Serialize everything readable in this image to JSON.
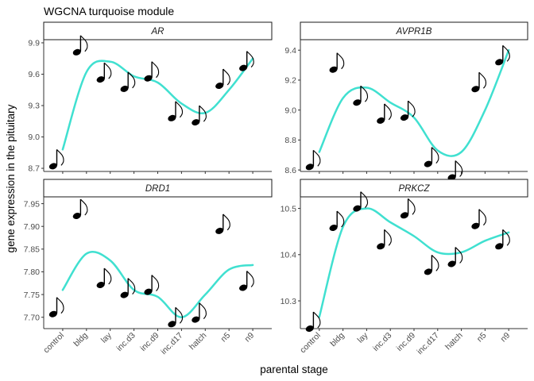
{
  "chart_data": {
    "type": "scatter",
    "title": "WGCNA turquoise module",
    "xlabel": "parental stage",
    "ylabel": "gene expression  in the pituitary",
    "categories": [
      "control",
      "bldg",
      "lay",
      "inc.d3",
      "inc.d9",
      "inc.d17",
      "hatch",
      "n5",
      "n9"
    ],
    "trend_color": "#40E0D0",
    "marker": "musical-note",
    "panels": [
      {
        "gene": "AR",
        "ylim": [
          8.67,
          9.93
        ],
        "yticks": [
          8.7,
          9.0,
          9.3,
          9.6,
          9.9
        ],
        "ytick_labels": [
          "8.7",
          "9.0",
          "9.3",
          "9.6",
          "9.9"
        ],
        "means": [
          8.72,
          9.81,
          9.55,
          9.46,
          9.56,
          9.18,
          9.14,
          9.49,
          9.66
        ],
        "trend": [
          8.88,
          9.62,
          9.72,
          9.58,
          9.52,
          9.32,
          9.23,
          9.45,
          9.75
        ]
      },
      {
        "gene": "AVPR1B",
        "ylim": [
          8.59,
          9.47
        ],
        "yticks": [
          8.6,
          8.8,
          9.0,
          9.2,
          9.4
        ],
        "ytick_labels": [
          "8.6",
          "8.8",
          "9.0",
          "9.2",
          "9.4"
        ],
        "means": [
          8.62,
          9.27,
          9.05,
          8.93,
          8.95,
          8.64,
          8.55,
          9.14,
          9.32
        ],
        "trend": [
          8.72,
          9.08,
          9.15,
          9.05,
          8.95,
          8.73,
          8.72,
          9.0,
          9.4
        ]
      },
      {
        "gene": "DRD1",
        "ylim": [
          7.675,
          7.965
        ],
        "yticks": [
          7.7,
          7.75,
          7.8,
          7.85,
          7.9,
          7.95
        ],
        "ytick_labels": [
          "7.70",
          "7.75",
          "7.80",
          "7.85",
          "7.90",
          "7.95"
        ],
        "means": [
          7.707,
          7.923,
          7.771,
          7.749,
          7.756,
          7.685,
          7.695,
          7.89,
          7.765
        ],
        "trend": [
          7.76,
          7.84,
          7.825,
          7.76,
          7.745,
          7.7,
          7.75,
          7.805,
          7.815
        ]
      },
      {
        "gene": "PRKCZ",
        "ylim": [
          10.24,
          10.525
        ],
        "yticks": [
          10.3,
          10.4,
          10.5
        ],
        "ytick_labels": [
          "10.3",
          "10.4",
          "10.5"
        ],
        "means": [
          10.24,
          10.458,
          10.5,
          10.418,
          10.485,
          10.363,
          10.38,
          10.462,
          10.418
        ],
        "trend": [
          10.265,
          10.46,
          10.5,
          10.47,
          10.44,
          10.405,
          10.405,
          10.43,
          10.448
        ]
      }
    ]
  }
}
